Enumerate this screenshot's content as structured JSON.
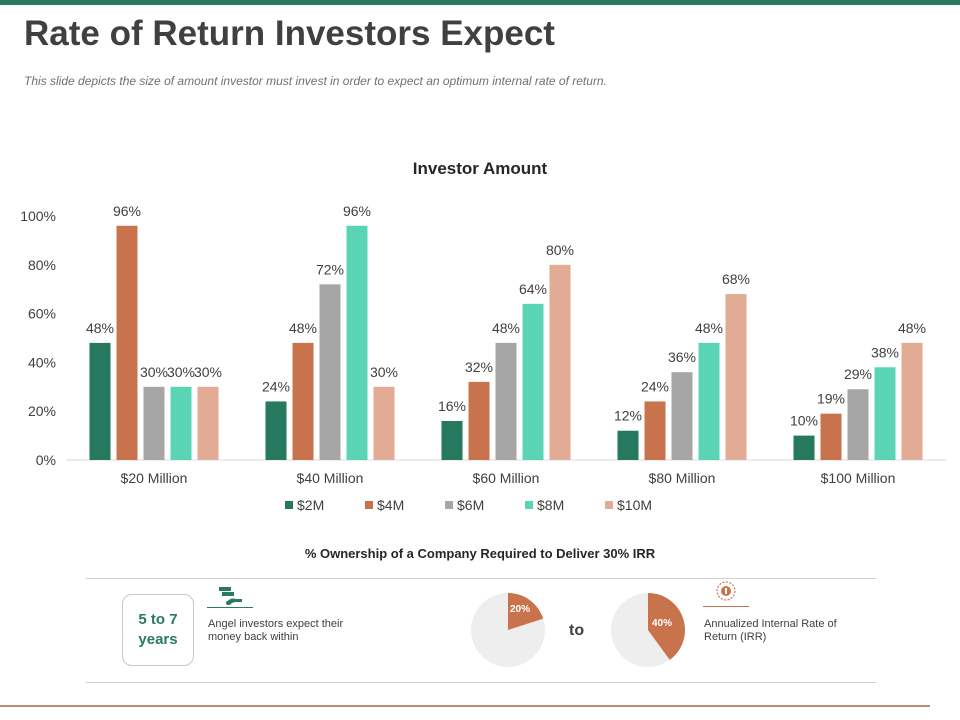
{
  "header": {
    "title": "Rate of Return Investors Expect",
    "subtitle": "This slide depicts the size of amount investor must invest in order to expect an optimum internal rate of return."
  },
  "chart_data": {
    "type": "bar",
    "title": "Investor Amount",
    "categories": [
      "$20 Million",
      "$40 Million",
      "$60 Million",
      "$80 Million",
      "$100 Million"
    ],
    "series": [
      {
        "name": "$2M",
        "color": "#26795e",
        "values": [
          48,
          24,
          16,
          12,
          10
        ]
      },
      {
        "name": "$4M",
        "color": "#c9734c",
        "values": [
          96,
          48,
          32,
          24,
          19
        ]
      },
      {
        "name": "$6M",
        "color": "#a6a6a6",
        "values": [
          30,
          72,
          48,
          36,
          29
        ]
      },
      {
        "name": "$8M",
        "color": "#5ad4b4",
        "values": [
          30,
          96,
          64,
          48,
          38
        ]
      },
      {
        "name": "$10M",
        "color": "#e2ac94",
        "values": [
          30,
          30,
          80,
          68,
          48
        ]
      }
    ],
    "ylim": [
      0,
      100
    ],
    "yticks": [
      0,
      20,
      40,
      60,
      80,
      100
    ],
    "value_suffix": "%",
    "xlabel": "",
    "ylabel": "",
    "legend": "bottom",
    "grid": false
  },
  "ownership": {
    "title": "% Ownership of a Company Required to Deliver 30% IRR",
    "years": "5 to 7 years",
    "angel_text": "Angel investors expect their money back within",
    "connector": "to",
    "irr_text": "Annualized Internal Rate of Return (IRR)",
    "pie_low": {
      "value": 20,
      "label": "20%",
      "color": "#c9734c",
      "track": "#eeeeee"
    },
    "pie_high": {
      "value": 40,
      "label": "40%",
      "color": "#c9734c",
      "track": "#eeeeee"
    },
    "accent_green": "#2a7a60",
    "accent_orange": "#c9734c"
  }
}
